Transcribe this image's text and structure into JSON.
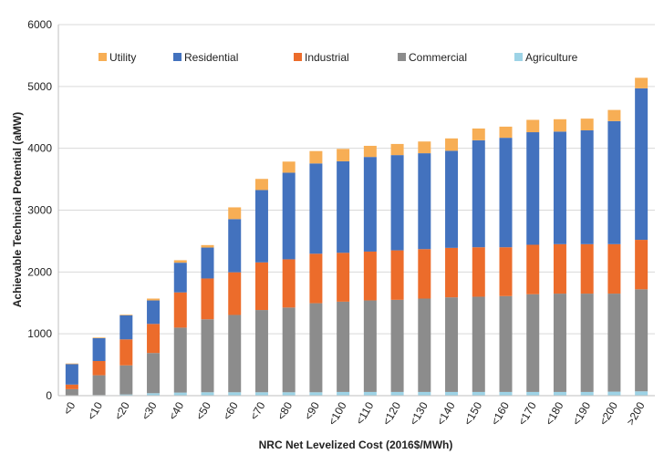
{
  "chart_data": {
    "type": "bar",
    "stacked": true,
    "title": "",
    "xlabel": "NRC Net Levelized Cost (2016$/MWh)",
    "ylabel": "Achievable Technical Potential (aMW)",
    "ylim": [
      0,
      6000
    ],
    "yticks": [
      0,
      1000,
      2000,
      3000,
      4000,
      5000,
      6000
    ],
    "grid": true,
    "legend_position": "top",
    "categories": [
      "<0",
      "<10",
      "<20",
      "<30",
      "<40",
      "<50",
      "<60",
      "<70",
      "<80",
      "<90",
      "<100",
      "<110",
      "<120",
      "<130",
      "<140",
      "<150",
      "<160",
      "<170",
      "<180",
      "<190",
      "<200",
      ">200"
    ],
    "legend_order": [
      "Utility",
      "Residential",
      "Industrial",
      "Commercial",
      "Agriculture"
    ],
    "series": [
      {
        "name": "Agriculture",
        "color": "#9dd3e6",
        "values": [
          5,
          10,
          20,
          40,
          50,
          55,
          55,
          55,
          55,
          55,
          60,
          60,
          60,
          60,
          60,
          60,
          60,
          60,
          60,
          60,
          65,
          70
        ]
      },
      {
        "name": "Commercial",
        "color": "#8c8c8c",
        "values": [
          100,
          320,
          470,
          650,
          1050,
          1180,
          1250,
          1330,
          1370,
          1440,
          1460,
          1480,
          1490,
          1510,
          1530,
          1540,
          1550,
          1580,
          1590,
          1590,
          1585,
          1650
        ]
      },
      {
        "name": "Industrial",
        "color": "#ec6c2b",
        "values": [
          75,
          230,
          420,
          470,
          570,
          660,
          690,
          770,
          780,
          800,
          790,
          790,
          800,
          800,
          800,
          800,
          790,
          800,
          800,
          800,
          800,
          800
        ]
      },
      {
        "name": "Residential",
        "color": "#4372be",
        "values": [
          330,
          370,
          390,
          380,
          480,
          500,
          860,
          1170,
          1400,
          1460,
          1480,
          1530,
          1540,
          1550,
          1570,
          1730,
          1770,
          1820,
          1820,
          1840,
          1990,
          2450
        ]
      },
      {
        "name": "Utility",
        "color": "#f7ae55",
        "values": [
          10,
          10,
          10,
          30,
          40,
          40,
          190,
          180,
          180,
          200,
          200,
          180,
          180,
          190,
          200,
          190,
          180,
          200,
          200,
          190,
          180,
          170
        ]
      }
    ]
  }
}
